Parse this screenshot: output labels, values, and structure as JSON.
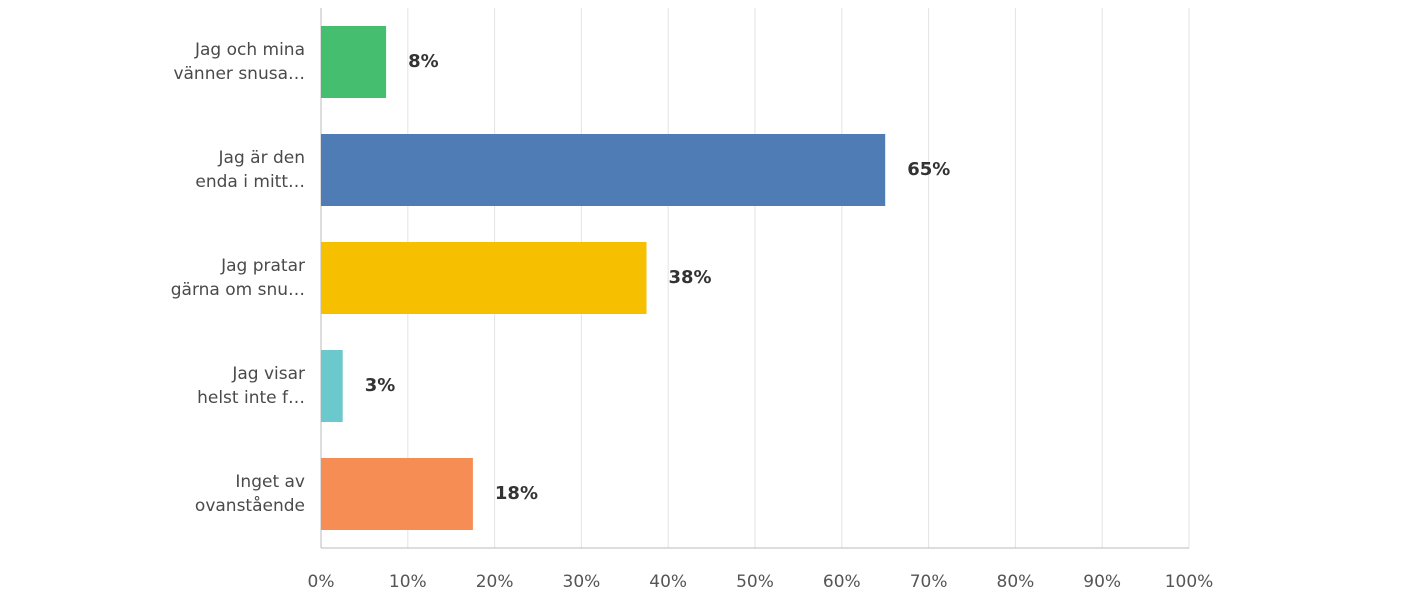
{
  "chart_data": {
    "type": "barh",
    "categories": [
      [
        "Jag och mina",
        "vänner snusa…"
      ],
      [
        "Jag är den",
        "enda i mitt…"
      ],
      [
        "Jag pratar",
        "gärna om snu…"
      ],
      [
        "Jag visar",
        "helst inte f…"
      ],
      [
        "Inget av",
        "ovanstående"
      ]
    ],
    "values": [
      7.5,
      65,
      37.5,
      2.5,
      17.5
    ],
    "value_labels": [
      "8%",
      "65%",
      "38%",
      "3%",
      "18%"
    ],
    "colors": [
      "#45be6f",
      "#507cb6",
      "#f6bf00",
      "#6bc8cd",
      "#f68d55"
    ],
    "xlim": [
      0,
      100
    ],
    "xticks": [
      {
        "value": 0,
        "label": "0%"
      },
      {
        "value": 10,
        "label": "10%"
      },
      {
        "value": 20,
        "label": "20%"
      },
      {
        "value": 30,
        "label": "30%"
      },
      {
        "value": 40,
        "label": "40%"
      },
      {
        "value": 50,
        "label": "50%"
      },
      {
        "value": 60,
        "label": "60%"
      },
      {
        "value": 70,
        "label": "70%"
      },
      {
        "value": 80,
        "label": "80%"
      },
      {
        "value": 90,
        "label": "90%"
      },
      {
        "value": 100,
        "label": "100%"
      }
    ],
    "grid": true
  }
}
